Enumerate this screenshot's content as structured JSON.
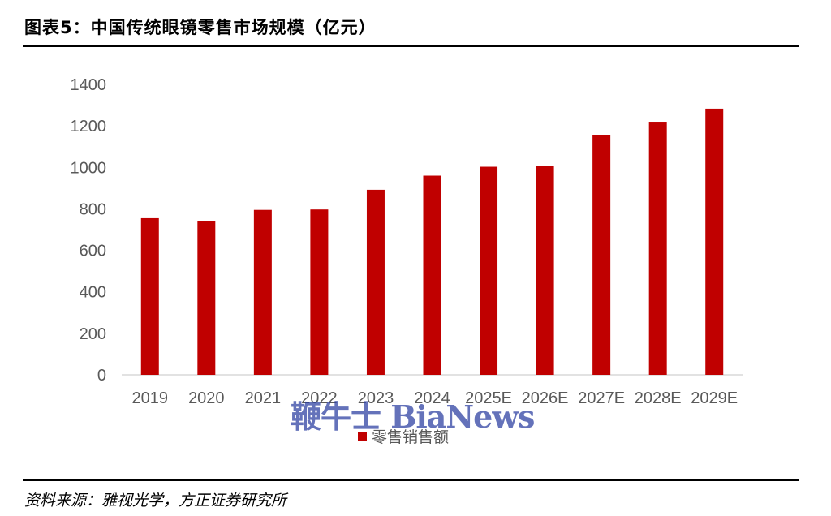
{
  "title": "图表5：中国传统眼镜零售市场规模（亿元）",
  "source": "资料来源：雅视光学，方正证券研究所",
  "watermark": "鞭牛士 BiaNews",
  "colors": {
    "bar": "#C00000",
    "axis": "#D9D9D9",
    "tick_text": "#595959"
  },
  "chart_data": {
    "type": "bar",
    "categories": [
      "2019",
      "2020",
      "2021",
      "2022",
      "2023",
      "2024",
      "2025E",
      "2026E",
      "2027E",
      "2028E",
      "2029E"
    ],
    "series": [
      {
        "name": "零售销售额",
        "values": [
          755,
          740,
          795,
          797,
          892,
          960,
          1003,
          1008,
          1157,
          1220,
          1283
        ]
      }
    ],
    "yticks": [
      0,
      200,
      400,
      600,
      800,
      1000,
      1200,
      1400
    ],
    "ylim": [
      0,
      1400
    ],
    "xlabel": "",
    "ylabel": "",
    "grid": false,
    "legend": "bottom"
  }
}
